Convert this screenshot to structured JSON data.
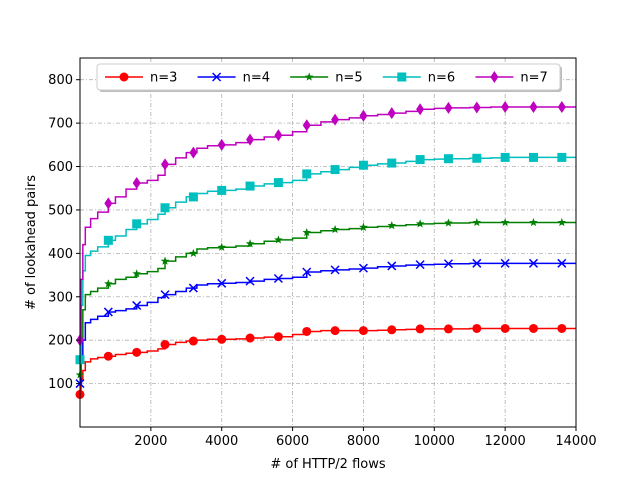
{
  "chart_data": {
    "type": "line",
    "title": "",
    "xlabel": "# of HTTP/2 flows",
    "ylabel": "# of lookahead pairs",
    "xlim": [
      0,
      14000
    ],
    "ylim": [
      0,
      850
    ],
    "xticks": [
      2000,
      4000,
      6000,
      8000,
      10000,
      12000,
      14000
    ],
    "yticks": [
      100,
      200,
      300,
      400,
      500,
      600,
      700,
      800
    ],
    "grid": true,
    "legend_position": "top",
    "legend_columns": 5,
    "series": [
      {
        "name": "n=3",
        "color": "#ff0000",
        "marker": "circle",
        "points": [
          [
            0,
            75
          ],
          [
            30,
            110
          ],
          [
            80,
            130
          ],
          [
            150,
            150
          ],
          [
            300,
            157
          ],
          [
            500,
            160
          ],
          [
            800,
            163
          ],
          [
            1000,
            167
          ],
          [
            1300,
            170
          ],
          [
            1600,
            172
          ],
          [
            1900,
            175
          ],
          [
            2200,
            180
          ],
          [
            2400,
            190
          ],
          [
            2700,
            195
          ],
          [
            3000,
            198
          ],
          [
            3300,
            200
          ],
          [
            3600,
            202
          ],
          [
            4000,
            202
          ],
          [
            4400,
            203
          ],
          [
            4800,
            205
          ],
          [
            5200,
            207
          ],
          [
            5600,
            208
          ],
          [
            6000,
            213
          ],
          [
            6400,
            220
          ],
          [
            6800,
            222
          ],
          [
            7200,
            222
          ],
          [
            7600,
            222
          ],
          [
            8000,
            222
          ],
          [
            8400,
            223
          ],
          [
            8800,
            224
          ],
          [
            9200,
            225
          ],
          [
            9600,
            226
          ],
          [
            10000,
            226
          ],
          [
            10400,
            226
          ],
          [
            11000,
            227
          ],
          [
            11600,
            227
          ],
          [
            12000,
            227
          ],
          [
            12800,
            227
          ],
          [
            13600,
            227
          ],
          [
            14000,
            227
          ]
        ],
        "marker_x": [
          0,
          800,
          1600,
          2400,
          3200,
          4000,
          4800,
          5600,
          6400,
          7200,
          8000,
          8800,
          9600,
          10400,
          11200,
          12000,
          12800,
          13600
        ]
      },
      {
        "name": "n=4",
        "color": "#0000ff",
        "marker": "x",
        "points": [
          [
            0,
            100
          ],
          [
            30,
            150
          ],
          [
            80,
            200
          ],
          [
            150,
            240
          ],
          [
            300,
            248
          ],
          [
            500,
            255
          ],
          [
            800,
            265
          ],
          [
            1000,
            268
          ],
          [
            1300,
            272
          ],
          [
            1600,
            280
          ],
          [
            1900,
            287
          ],
          [
            2200,
            298
          ],
          [
            2400,
            305
          ],
          [
            2700,
            312
          ],
          [
            3000,
            320
          ],
          [
            3300,
            327
          ],
          [
            3600,
            330
          ],
          [
            4000,
            331
          ],
          [
            4400,
            333
          ],
          [
            4800,
            336
          ],
          [
            5200,
            340
          ],
          [
            5600,
            342
          ],
          [
            6000,
            345
          ],
          [
            6400,
            357
          ],
          [
            6800,
            360
          ],
          [
            7200,
            362
          ],
          [
            7600,
            364
          ],
          [
            8000,
            366
          ],
          [
            8400,
            369
          ],
          [
            8800,
            371
          ],
          [
            9200,
            373
          ],
          [
            9600,
            374
          ],
          [
            10000,
            375
          ],
          [
            10400,
            376
          ],
          [
            11000,
            377
          ],
          [
            11600,
            377
          ],
          [
            12000,
            377
          ],
          [
            12800,
            377
          ],
          [
            13600,
            377
          ],
          [
            14000,
            377
          ]
        ],
        "marker_x": [
          0,
          800,
          1600,
          2400,
          3200,
          4000,
          4800,
          5600,
          6400,
          7200,
          8000,
          8800,
          9600,
          10400,
          11200,
          12000,
          12800,
          13600
        ]
      },
      {
        "name": "n=5",
        "color": "#008000",
        "marker": "star",
        "points": [
          [
            0,
            120
          ],
          [
            30,
            200
          ],
          [
            80,
            270
          ],
          [
            150,
            305
          ],
          [
            300,
            312
          ],
          [
            500,
            320
          ],
          [
            800,
            330
          ],
          [
            1000,
            340
          ],
          [
            1300,
            345
          ],
          [
            1600,
            353
          ],
          [
            1900,
            358
          ],
          [
            2200,
            365
          ],
          [
            2400,
            382
          ],
          [
            2700,
            392
          ],
          [
            3000,
            400
          ],
          [
            3300,
            410
          ],
          [
            3600,
            413
          ],
          [
            4000,
            414
          ],
          [
            4400,
            417
          ],
          [
            4800,
            422
          ],
          [
            5200,
            428
          ],
          [
            5600,
            431
          ],
          [
            6000,
            435
          ],
          [
            6400,
            448
          ],
          [
            6800,
            452
          ],
          [
            7200,
            455
          ],
          [
            7600,
            457
          ],
          [
            8000,
            460
          ],
          [
            8400,
            462
          ],
          [
            8800,
            464
          ],
          [
            9200,
            466
          ],
          [
            9600,
            468
          ],
          [
            10000,
            469
          ],
          [
            10400,
            470
          ],
          [
            11000,
            471
          ],
          [
            11600,
            471
          ],
          [
            12000,
            471
          ],
          [
            12800,
            471
          ],
          [
            13600,
            471
          ],
          [
            14000,
            471
          ]
        ],
        "marker_x": [
          0,
          800,
          1600,
          2400,
          3200,
          4000,
          4800,
          5600,
          6400,
          7200,
          8000,
          8800,
          9600,
          10400,
          11200,
          12000,
          12800,
          13600
        ]
      },
      {
        "name": "n=6",
        "color": "#00bfbf",
        "marker": "square",
        "points": [
          [
            0,
            155
          ],
          [
            30,
            280
          ],
          [
            80,
            360
          ],
          [
            150,
            395
          ],
          [
            300,
            405
          ],
          [
            500,
            415
          ],
          [
            800,
            430
          ],
          [
            1000,
            440
          ],
          [
            1300,
            455
          ],
          [
            1600,
            468
          ],
          [
            1900,
            478
          ],
          [
            2200,
            490
          ],
          [
            2400,
            505
          ],
          [
            2700,
            518
          ],
          [
            3000,
            530
          ],
          [
            3300,
            538
          ],
          [
            3600,
            543
          ],
          [
            4000,
            545
          ],
          [
            4400,
            548
          ],
          [
            4800,
            555
          ],
          [
            5200,
            560
          ],
          [
            5600,
            563
          ],
          [
            6000,
            568
          ],
          [
            6400,
            583
          ],
          [
            6800,
            588
          ],
          [
            7200,
            593
          ],
          [
            7600,
            598
          ],
          [
            8000,
            603
          ],
          [
            8400,
            606
          ],
          [
            8800,
            608
          ],
          [
            9200,
            612
          ],
          [
            9600,
            616
          ],
          [
            10000,
            617
          ],
          [
            10400,
            618
          ],
          [
            11000,
            619
          ],
          [
            11600,
            620
          ],
          [
            12000,
            621
          ],
          [
            12800,
            621
          ],
          [
            13600,
            621
          ],
          [
            14000,
            621
          ]
        ],
        "marker_x": [
          0,
          800,
          1600,
          2400,
          3200,
          4000,
          4800,
          5600,
          6400,
          7200,
          8000,
          8800,
          9600,
          10400,
          11200,
          12000,
          12800,
          13600
        ]
      },
      {
        "name": "n=7",
        "color": "#bf00bf",
        "marker": "diamond",
        "points": [
          [
            0,
            200
          ],
          [
            30,
            340
          ],
          [
            80,
            420
          ],
          [
            150,
            460
          ],
          [
            300,
            480
          ],
          [
            500,
            495
          ],
          [
            800,
            515
          ],
          [
            1000,
            530
          ],
          [
            1300,
            548
          ],
          [
            1600,
            562
          ],
          [
            1900,
            568
          ],
          [
            2200,
            580
          ],
          [
            2400,
            605
          ],
          [
            2700,
            620
          ],
          [
            3000,
            632
          ],
          [
            3300,
            642
          ],
          [
            3600,
            648
          ],
          [
            4000,
            650
          ],
          [
            4400,
            655
          ],
          [
            4800,
            662
          ],
          [
            5200,
            668
          ],
          [
            5600,
            672
          ],
          [
            6000,
            680
          ],
          [
            6400,
            695
          ],
          [
            6800,
            703
          ],
          [
            7200,
            708
          ],
          [
            7600,
            712
          ],
          [
            8000,
            717
          ],
          [
            8400,
            720
          ],
          [
            8800,
            723
          ],
          [
            9200,
            727
          ],
          [
            9600,
            732
          ],
          [
            10000,
            734
          ],
          [
            10400,
            735
          ],
          [
            11000,
            736
          ],
          [
            11600,
            737
          ],
          [
            12000,
            737
          ],
          [
            12800,
            737
          ],
          [
            13600,
            737
          ],
          [
            14000,
            737
          ]
        ],
        "marker_x": [
          0,
          800,
          1600,
          2400,
          3200,
          4000,
          4800,
          5600,
          6400,
          7200,
          8000,
          8800,
          9600,
          10400,
          11200,
          12000,
          12800,
          13600
        ]
      }
    ]
  }
}
